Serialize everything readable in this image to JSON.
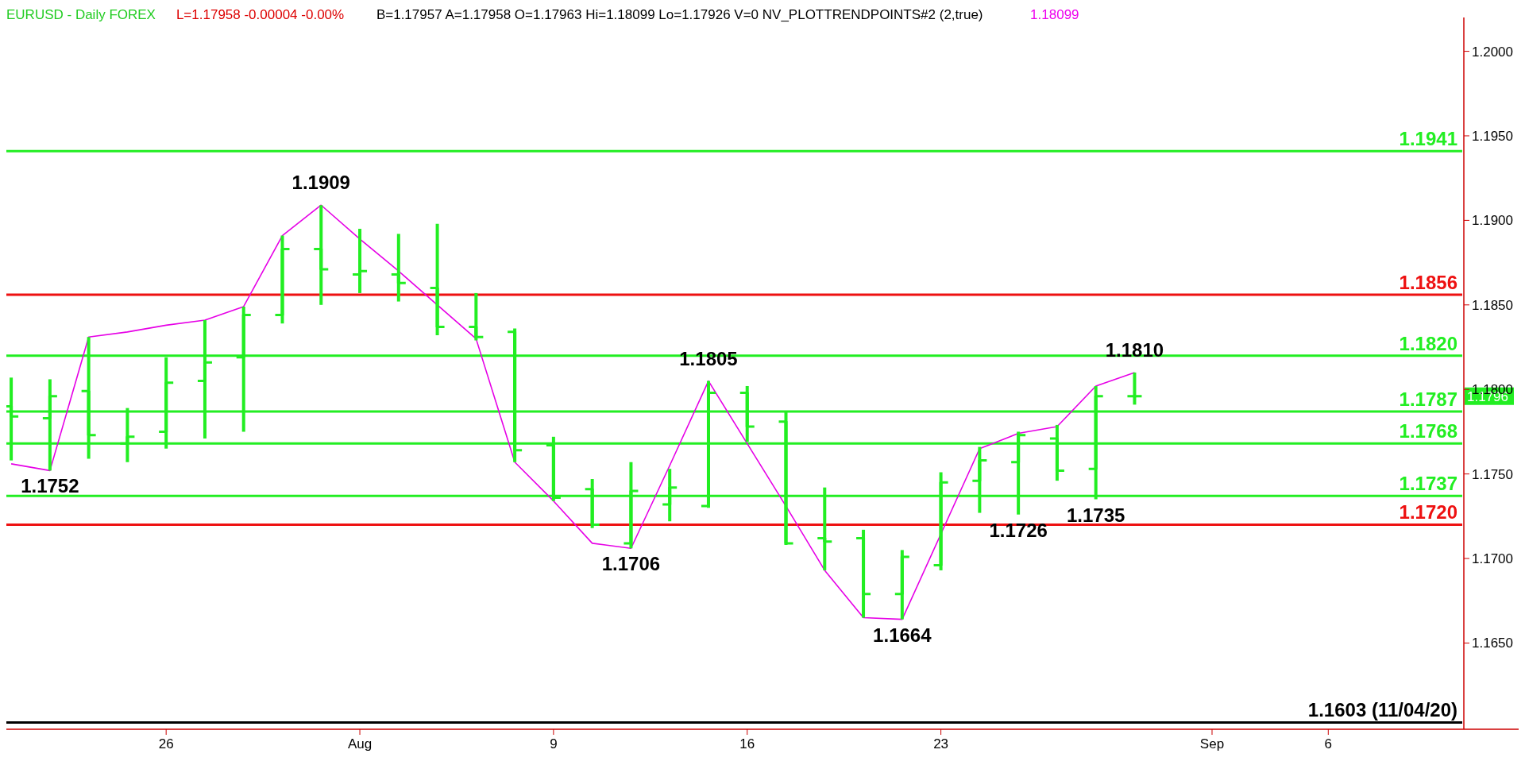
{
  "chart_data": {
    "type": "candlestick",
    "title": "EURUSD - Daily  FOREX",
    "categories": [
      null,
      null,
      null,
      null,
      "26",
      null,
      null,
      null,
      null,
      "Aug",
      null,
      null,
      null,
      null,
      "9",
      null,
      null,
      null,
      null,
      "16",
      null,
      null,
      null,
      null,
      "23",
      null,
      null,
      null,
      null,
      null,
      null,
      "Sep",
      null,
      null,
      "6",
      null,
      null,
      null
    ],
    "color": "#22ee22",
    "ohlc": [
      [
        1.179,
        1.1807,
        1.1758,
        1.1784
      ],
      [
        1.1783,
        1.1806,
        1.1752,
        1.1796
      ],
      [
        1.1799,
        1.1831,
        1.1759,
        1.1773
      ],
      [
        1.1768,
        1.1789,
        1.1757,
        1.1772
      ],
      [
        1.1775,
        1.1819,
        1.1765,
        1.1804
      ],
      [
        1.1805,
        1.1841,
        1.1771,
        1.1816
      ],
      [
        1.1819,
        1.1849,
        1.1775,
        1.1844
      ],
      [
        1.1844,
        1.1891,
        1.1839,
        1.1883
      ],
      [
        1.1883,
        1.1909,
        1.185,
        1.1871
      ],
      [
        1.1868,
        1.1895,
        1.1857,
        1.187
      ],
      [
        1.1868,
        1.1892,
        1.1852,
        1.1863
      ],
      [
        1.186,
        1.1898,
        1.1832,
        1.1837
      ],
      [
        1.1837,
        1.1857,
        1.1829,
        1.1831
      ],
      [
        1.1834,
        1.1836,
        1.1757,
        1.1764
      ],
      [
        1.1767,
        1.1772,
        1.1734,
        1.1736
      ],
      [
        1.1741,
        1.1747,
        1.1718,
        1.172
      ],
      [
        1.1709,
        1.1757,
        1.1706,
        1.174
      ],
      [
        1.1732,
        1.1753,
        1.1722,
        1.1742
      ],
      [
        1.1731,
        1.1805,
        1.173,
        1.1798
      ],
      [
        1.1798,
        1.1802,
        1.1769,
        1.1778
      ],
      [
        1.1781,
        1.1787,
        1.1708,
        1.1709
      ],
      [
        1.1712,
        1.1742,
        1.1693,
        1.171
      ],
      [
        1.1712,
        1.1717,
        1.1665,
        1.1679
      ],
      [
        1.1679,
        1.1705,
        1.1664,
        1.1701
      ],
      [
        1.1696,
        1.1751,
        1.1693,
        1.1745
      ],
      [
        1.1746,
        1.1766,
        1.1727,
        1.1758
      ],
      [
        1.1757,
        1.1775,
        1.1726,
        1.1773
      ],
      [
        1.1771,
        1.1779,
        1.1746,
        1.1752
      ],
      [
        1.1753,
        1.1802,
        1.1735,
        1.1796
      ],
      [
        1.1796,
        1.181,
        1.1791,
        1.1796
      ],
      null,
      null,
      null,
      null,
      null,
      null,
      null,
      null
    ],
    "series": [
      {
        "type": "line",
        "color": "#e600e6",
        "values": [
          1.1756,
          1.1752,
          1.1831,
          1.1834,
          1.1838,
          1.1841,
          1.1849,
          1.1891,
          1.1909,
          1.1889,
          1.187,
          1.185,
          1.183,
          1.1757,
          1.1734,
          1.1709,
          1.1706,
          1.1755,
          1.1805,
          1.1768,
          1.1731,
          1.1693,
          1.1665,
          1.1664,
          null,
          1.1765,
          1.1774,
          1.1778,
          1.1802,
          1.181,
          null,
          null,
          null,
          null,
          null,
          null,
          null,
          null
        ]
      }
    ],
    "ylim": [
      1.1599,
      1.202
    ],
    "yticks": [
      {
        "value": 1.165,
        "label": "1.1650"
      },
      {
        "value": 1.17,
        "label": "1.1700"
      },
      {
        "value": 1.175,
        "label": "1.1750"
      },
      {
        "value": 1.18,
        "label": "1.1800"
      },
      {
        "value": 1.185,
        "label": "1.1850"
      },
      {
        "value": 1.19,
        "label": "1.1900"
      },
      {
        "value": 1.195,
        "label": "1.1950"
      },
      {
        "value": 1.2,
        "label": "1.2000"
      }
    ],
    "ref_lines": [
      {
        "axis": "y",
        "value": 1.1941,
        "label": "1.1941",
        "color": "#22ee22"
      },
      {
        "axis": "y",
        "value": 1.1856,
        "label": "1.1856",
        "color": "#ee1111"
      },
      {
        "axis": "y",
        "value": 1.182,
        "label": "1.1820",
        "color": "#22ee22"
      },
      {
        "axis": "y",
        "value": 1.1787,
        "label": "1.1787",
        "color": "#22ee22"
      },
      {
        "axis": "y",
        "value": 1.1768,
        "label": "1.1768",
        "color": "#22ee22"
      },
      {
        "axis": "y",
        "value": 1.1737,
        "label": "1.1737",
        "color": "#22ee22"
      },
      {
        "axis": "y",
        "value": 1.172,
        "label": "1.1720",
        "color": "#ee1111"
      },
      {
        "axis": "y",
        "value": 1.1603,
        "label": "1.1603 (11/04/20)",
        "color": "#000000"
      }
    ],
    "annotations": [
      "L=1.17958 -0.00004 -0.00%",
      "B=1.17957 A=1.17958 O=1.17963 Hi=1.18099 Lo=1.17926 V=0 NV_PLOTTRENDPOINTS#2 (2,true)",
      "1.18099",
      {
        "text": "1.1752",
        "y": 1.1752
      },
      {
        "text": "1.1909",
        "y": 1.1909
      },
      {
        "text": "1.1706",
        "y": 1.1706
      },
      {
        "text": "1.1805",
        "y": 1.1805
      },
      {
        "text": "1.1664",
        "y": 1.1664
      },
      {
        "text": "1.1726",
        "y": 1.1726
      },
      {
        "text": "1.1735",
        "y": 1.1735
      },
      {
        "text": "1.1810",
        "y": 1.181
      },
      "1.1796"
    ]
  }
}
